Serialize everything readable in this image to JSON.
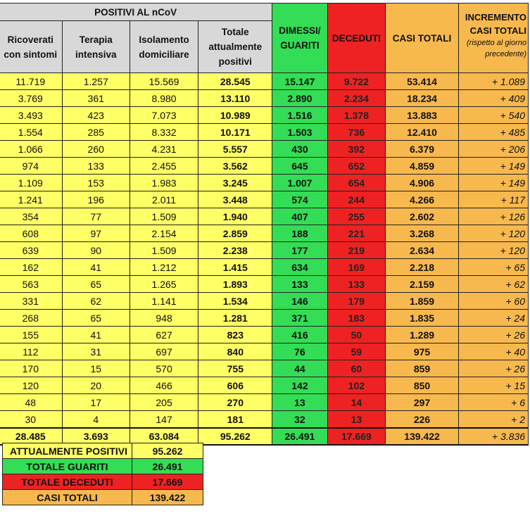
{
  "header": {
    "group_title": "POSITIVI AL nCoV",
    "ricoverati": "Ricoverati con sintomi",
    "terapia": "Terapia intensiva",
    "isolamento": "Isolamento domiciliare",
    "totale": "Totale attualmente positivi",
    "dimessi": "DIMESSI/ GUARITI",
    "deceduti": "DECEDUTI",
    "casi": "CASI TOTALI",
    "incremento": "INCREMENTO CASI TOTALI",
    "incremento_sub": "(rispetto al giorno precedente)"
  },
  "rows": [
    [
      "11.719",
      "1.257",
      "15.569",
      "28.545",
      "15.147",
      "9.722",
      "53.414",
      "+ 1.089"
    ],
    [
      "3.769",
      "361",
      "8.980",
      "13.110",
      "2.890",
      "2.234",
      "18.234",
      "+ 409"
    ],
    [
      "3.493",
      "423",
      "7.073",
      "10.989",
      "1.516",
      "1.378",
      "13.883",
      "+ 540"
    ],
    [
      "1.554",
      "285",
      "8.332",
      "10.171",
      "1.503",
      "736",
      "12.410",
      "+ 485"
    ],
    [
      "1.066",
      "260",
      "4.231",
      "5.557",
      "430",
      "392",
      "6.379",
      "+ 206"
    ],
    [
      "974",
      "133",
      "2.455",
      "3.562",
      "645",
      "652",
      "4.859",
      "+ 149"
    ],
    [
      "1.109",
      "153",
      "1.983",
      "3.245",
      "1.007",
      "654",
      "4.906",
      "+ 149"
    ],
    [
      "1.241",
      "196",
      "2.011",
      "3.448",
      "574",
      "244",
      "4.266",
      "+ 117"
    ],
    [
      "354",
      "77",
      "1.509",
      "1.940",
      "407",
      "255",
      "2.602",
      "+ 126"
    ],
    [
      "608",
      "97",
      "2.154",
      "2.859",
      "188",
      "221",
      "3.268",
      "+ 120"
    ],
    [
      "639",
      "90",
      "1.509",
      "2.238",
      "177",
      "219",
      "2.634",
      "+ 120"
    ],
    [
      "162",
      "41",
      "1.212",
      "1.415",
      "634",
      "169",
      "2.218",
      "+ 65"
    ],
    [
      "563",
      "65",
      "1.265",
      "1.893",
      "133",
      "133",
      "2.159",
      "+ 62"
    ],
    [
      "331",
      "62",
      "1.141",
      "1.534",
      "146",
      "179",
      "1.859",
      "+ 60"
    ],
    [
      "268",
      "65",
      "948",
      "1.281",
      "371",
      "183",
      "1.835",
      "+ 24"
    ],
    [
      "155",
      "41",
      "627",
      "823",
      "416",
      "50",
      "1.289",
      "+ 26"
    ],
    [
      "112",
      "31",
      "697",
      "840",
      "76",
      "59",
      "975",
      "+ 40"
    ],
    [
      "170",
      "15",
      "570",
      "755",
      "44",
      "60",
      "859",
      "+ 26"
    ],
    [
      "120",
      "20",
      "466",
      "606",
      "142",
      "102",
      "850",
      "+ 15"
    ],
    [
      "48",
      "17",
      "205",
      "270",
      "13",
      "14",
      "297",
      "+ 6"
    ],
    [
      "30",
      "4",
      "147",
      "181",
      "32",
      "13",
      "226",
      "+ 2"
    ]
  ],
  "totals": [
    "28.485",
    "3.693",
    "63.084",
    "95.262",
    "26.491",
    "17.669",
    "139.422",
    "+ 3.836"
  ],
  "summary": [
    {
      "label": "ATTUALMENTE POSITIVI",
      "value": "95.262",
      "color": "#ffff66"
    },
    {
      "label": "TOTALE GUARITI",
      "value": "26.491",
      "color": "#33dd55"
    },
    {
      "label": "TOTALE DECEDUTI",
      "value": "17.669",
      "color": "#ee2222"
    },
    {
      "label": "CASI TOTALI",
      "value": "139.422",
      "color": "#f7b84d"
    }
  ]
}
